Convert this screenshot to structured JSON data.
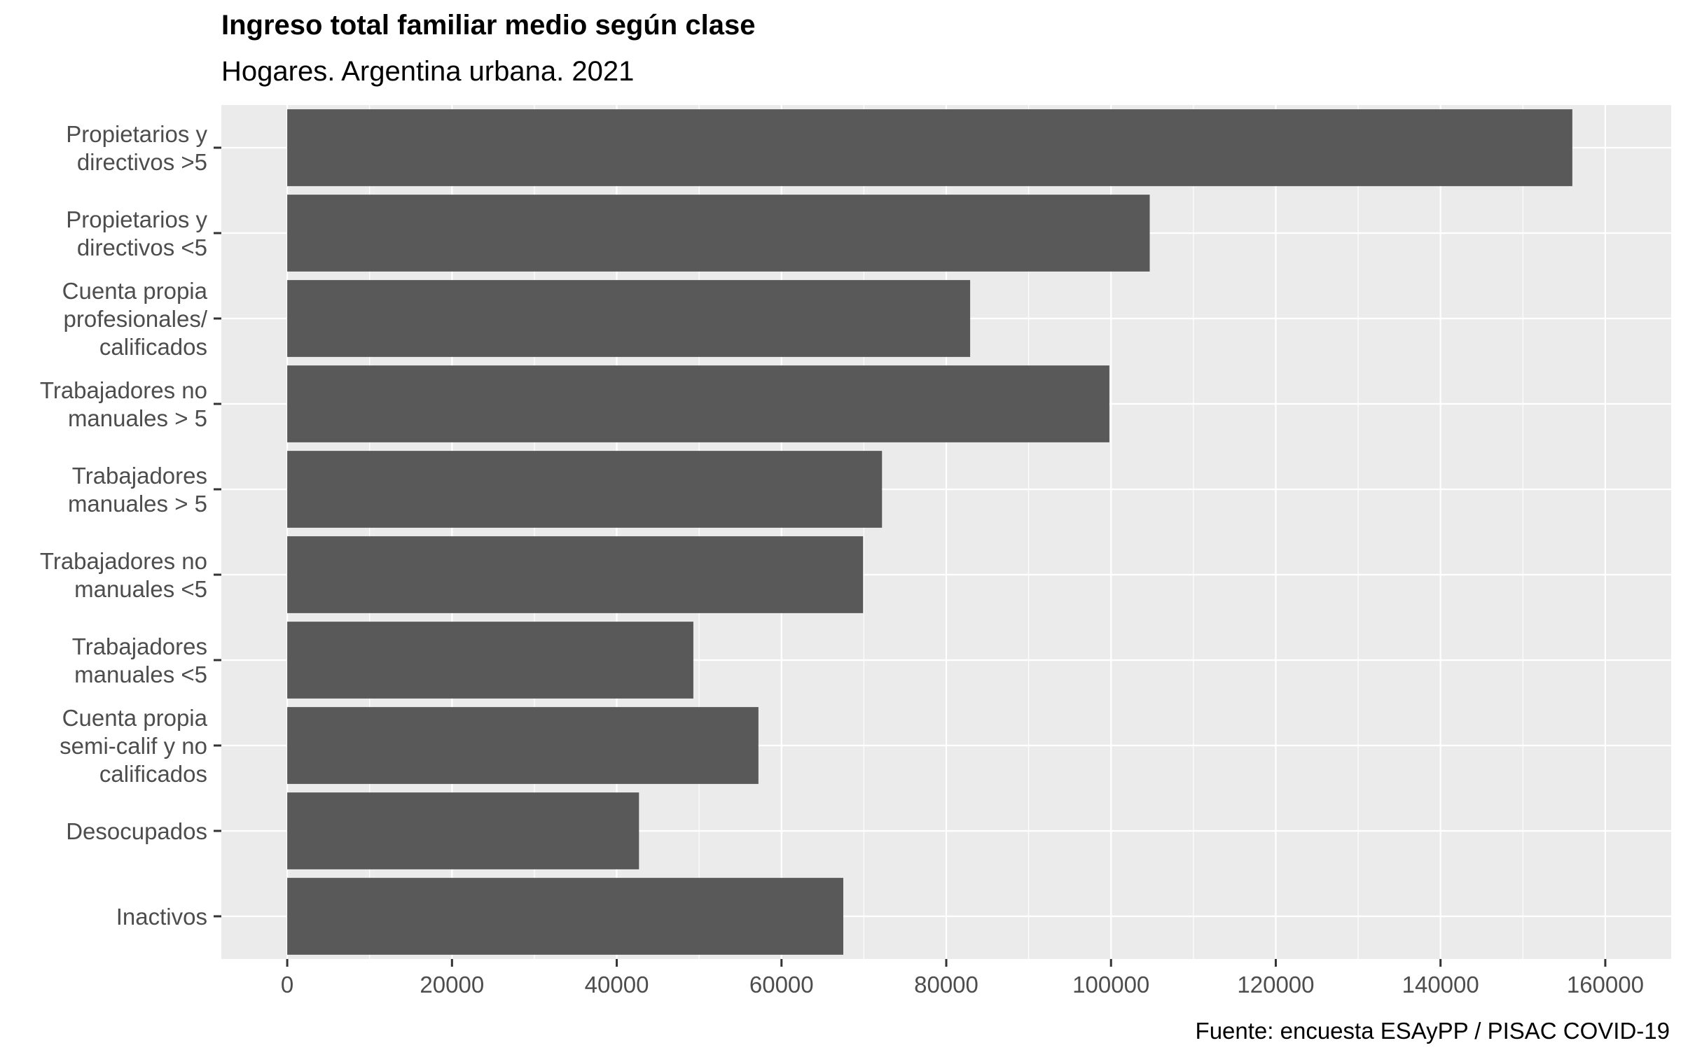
{
  "chart_data": {
    "type": "bar",
    "orientation": "horizontal",
    "title": "Ingreso total familiar medio según clase",
    "subtitle": "Hogares. Argentina urbana. 2021",
    "caption": "Fuente: encuesta ESAyPP / PISAC COVID-19",
    "xlabel": "",
    "ylabel": "",
    "categories": [
      [
        "Propietarios y",
        "directivos >5"
      ],
      [
        "Propietarios y",
        "directivos <5"
      ],
      [
        "Cuenta propia",
        "profesionales/",
        "calificados"
      ],
      [
        "Trabajadores no",
        "manuales > 5"
      ],
      [
        "Trabajadores",
        "manuales > 5"
      ],
      [
        "Trabajadores no",
        "manuales <5"
      ],
      [
        "Trabajadores",
        "manuales <5"
      ],
      [
        "Cuenta propia",
        "semi-calif y no",
        "calificados"
      ],
      [
        "Desocupados"
      ],
      [
        "Inactivos"
      ]
    ],
    "values": [
      156000,
      104700,
      82900,
      99800,
      72200,
      69900,
      49300,
      57200,
      42700,
      67500
    ],
    "xlim": [
      -8000,
      168000
    ],
    "xticks": [
      0,
      20000,
      40000,
      60000,
      80000,
      100000,
      120000,
      140000,
      160000
    ],
    "xtick_labels": [
      "0",
      "20000",
      "40000",
      "60000",
      "80000",
      "100000",
      "120000",
      "140000",
      "160000"
    ],
    "grid": true,
    "colors": {
      "bar": "#595959",
      "panel": "#ebebeb",
      "grid_major": "#ffffff"
    }
  }
}
